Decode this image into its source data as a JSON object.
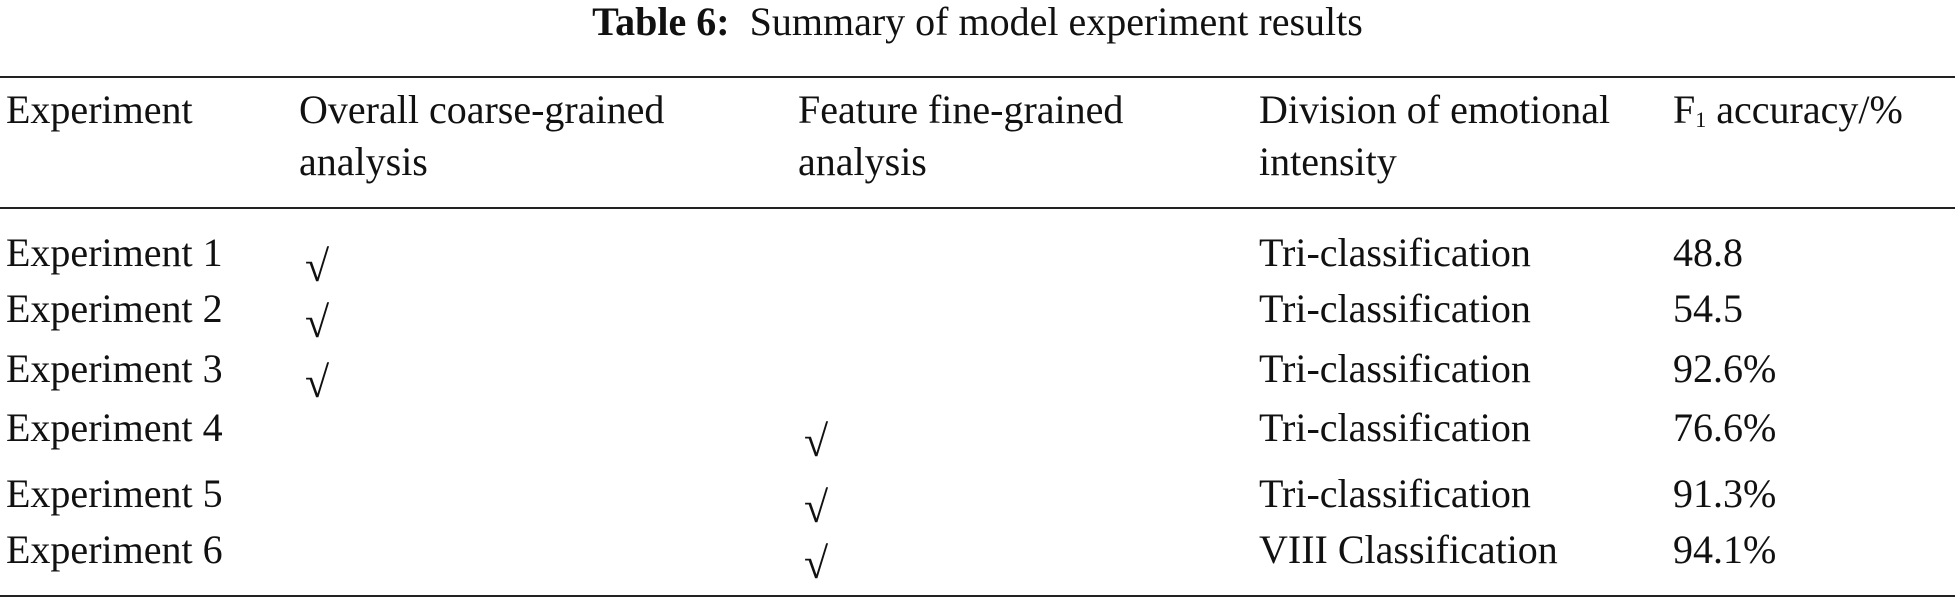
{
  "caption": {
    "label": "Table 6:",
    "title": "Summary of model experiment results"
  },
  "table": {
    "header": [
      "Experiment",
      "Overall coarse-grained analysis",
      "Feature fine-grained analysis",
      "Division of emotional intensity",
      {
        "pre": "F",
        "sub": "1",
        "post": " accuracy/%"
      }
    ],
    "rows": [
      [
        "Experiment 1",
        "√",
        null,
        "Tri-classification",
        "48.8"
      ],
      [
        "Experiment 2",
        "√",
        null,
        "Tri-classification",
        "54.5"
      ],
      [
        "Experiment 3",
        "√",
        null,
        "Tri-classification",
        "92.6%"
      ],
      [
        "Experiment 4",
        null,
        "√",
        "Tri-classification",
        "76.6%"
      ],
      [
        "Experiment 5",
        null,
        "√",
        "Tri-classification",
        "91.3%"
      ],
      [
        "Experiment 6",
        null,
        "√",
        "VIII Classification",
        "94.1%"
      ]
    ]
  }
}
